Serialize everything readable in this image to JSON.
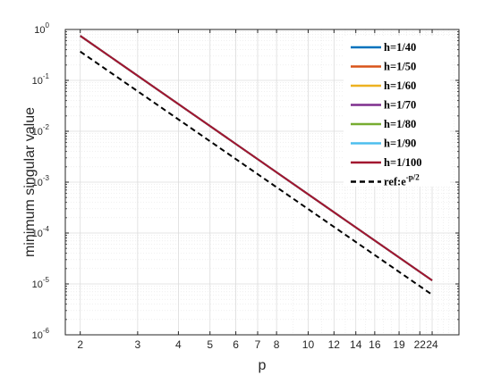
{
  "chart_data": {
    "type": "line",
    "xlabel": "p",
    "ylabel": "minimum singular value",
    "x_scale": "log",
    "y_scale": "log",
    "xlim": [
      1.8,
      29
    ],
    "ylim": [
      1e-06,
      1
    ],
    "xticks": [
      2,
      3,
      4,
      5,
      6,
      7,
      8,
      10,
      12,
      14,
      16,
      19,
      22,
      24
    ],
    "xtick_labels": [
      "2",
      "3",
      "4",
      "5",
      "6",
      "7",
      "8",
      "10",
      "12",
      "14",
      "16",
      "19",
      "22",
      "24"
    ],
    "yticks": [
      1e-06,
      1e-05,
      0.0001,
      0.001,
      0.01,
      0.1,
      1
    ],
    "ytick_base": "10",
    "ytick_exponents": [
      "-6",
      "-5",
      "-4",
      "-3",
      "-2",
      "-1",
      "0"
    ],
    "grid": true,
    "minor_grid": true,
    "legend_position": "top-right",
    "x": [
      2,
      24
    ],
    "series": [
      {
        "name": "h=1/40",
        "color": "#0072BD",
        "dash": "solid",
        "values": [
          0.75,
          1.17e-05
        ]
      },
      {
        "name": "h=1/50",
        "color": "#D95319",
        "dash": "solid",
        "values": [
          0.75,
          1.17e-05
        ]
      },
      {
        "name": "h=1/60",
        "color": "#EDB120",
        "dash": "solid",
        "values": [
          0.75,
          1.17e-05
        ]
      },
      {
        "name": "h=1/70",
        "color": "#7E2F8E",
        "dash": "solid",
        "values": [
          0.75,
          1.17e-05
        ]
      },
      {
        "name": "h=1/80",
        "color": "#77AC30",
        "dash": "solid",
        "values": [
          0.75,
          1.17e-05
        ]
      },
      {
        "name": "h=1/90",
        "color": "#4DBEEE",
        "dash": "solid",
        "values": [
          0.75,
          1.17e-05
        ]
      },
      {
        "name": "h=1/100",
        "color": "#A2142F",
        "dash": "solid",
        "values": [
          0.75,
          1.17e-05
        ]
      },
      {
        "name_prefix": "ref:e",
        "name_exponent": "-p/2",
        "color": "#000000",
        "dash": "dashed",
        "values": [
          0.368,
          6.14e-06
        ]
      }
    ]
  }
}
